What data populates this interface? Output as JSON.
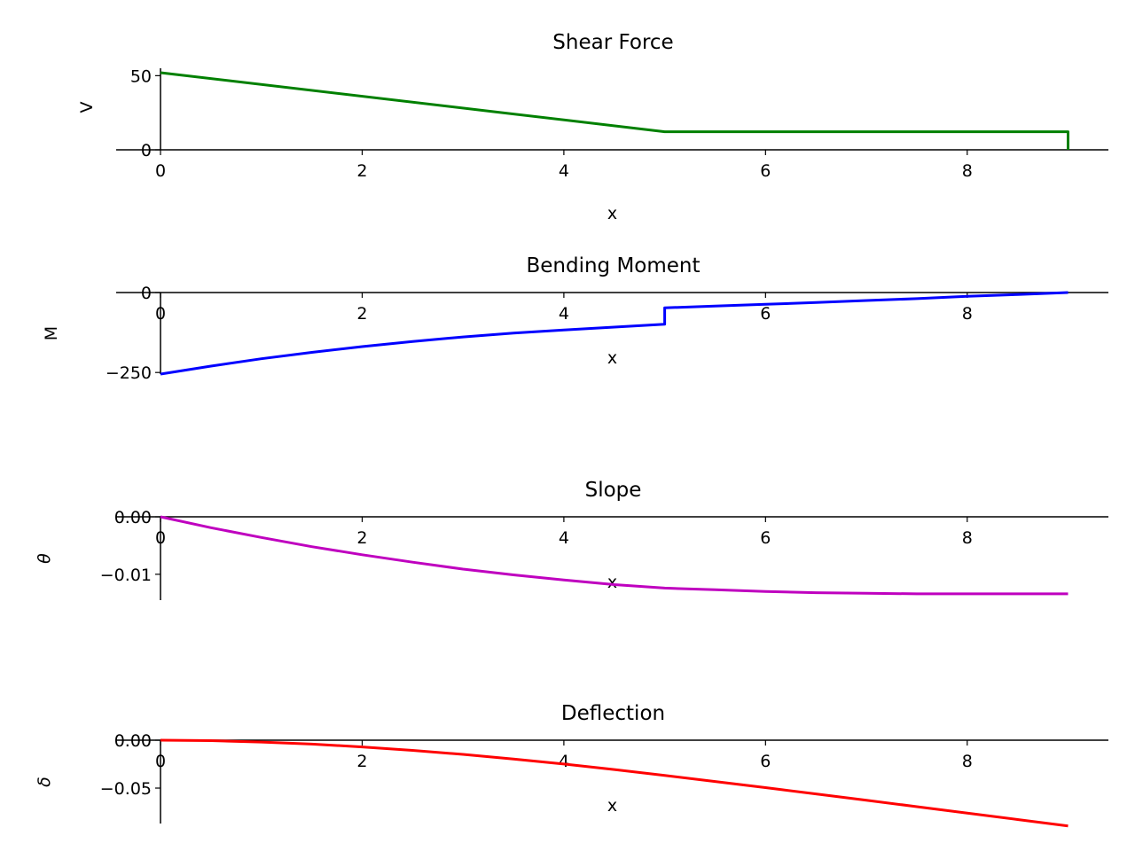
{
  "figure": {
    "background": "#ffffff"
  },
  "chart_data": [
    {
      "type": "line",
      "title": "Shear Force",
      "xlabel": "x",
      "ylabel": "V",
      "color": "#008000",
      "xlim": [
        0,
        9.4
      ],
      "ylim": [
        0,
        55
      ],
      "xticks": [
        0,
        2,
        4,
        6,
        8
      ],
      "yticks": [
        0,
        50
      ],
      "ytick_labels": [
        "0",
        "50"
      ],
      "x": [
        0,
        5,
        5,
        9,
        9
      ],
      "y": [
        52,
        12.2,
        12.2,
        12.2,
        0
      ]
    },
    {
      "type": "line",
      "title": "Bending Moment",
      "xlabel": "x",
      "ylabel": "M",
      "color": "#0000ff",
      "xlim": [
        0,
        9.4
      ],
      "ylim": [
        -255,
        0
      ],
      "xticks": [
        0,
        2,
        4,
        6,
        8
      ],
      "yticks": [
        0,
        -250
      ],
      "ytick_labels": [
        "0",
        "−250"
      ],
      "x": [
        0,
        0.5,
        1,
        1.5,
        2,
        2.5,
        3,
        3.5,
        4,
        4.5,
        5,
        5,
        5.5,
        6,
        6.5,
        7,
        7.5,
        8,
        8.5,
        9
      ],
      "y": [
        -255,
        -230,
        -207,
        -187,
        -169,
        -153,
        -139,
        -127,
        -117,
        -108,
        -99,
        -48,
        -42,
        -37,
        -31,
        -25,
        -19,
        -12,
        -6,
        0
      ]
    },
    {
      "type": "line",
      "title": "Slope",
      "xlabel": "x",
      "ylabel": "θ",
      "color": "#bf00bf",
      "xlim": [
        0,
        9.4
      ],
      "ylim": [
        -0.0145,
        0
      ],
      "xticks": [
        0,
        2,
        4,
        6,
        8
      ],
      "yticks": [
        0,
        -0.01
      ],
      "ytick_labels": [
        "0.00",
        "−0.01"
      ],
      "x": [
        0,
        0.5,
        1,
        1.5,
        2,
        2.5,
        3,
        3.5,
        4,
        4.5,
        5,
        5.5,
        6,
        6.5,
        7,
        7.5,
        8,
        8.5,
        9
      ],
      "y": [
        0,
        -0.0019,
        -0.0036,
        -0.0052,
        -0.0066,
        -0.0079,
        -0.0091,
        -0.0101,
        -0.011,
        -0.0118,
        -0.0124,
        -0.0127,
        -0.013,
        -0.0132,
        -0.0133,
        -0.0134,
        -0.0134,
        -0.0134,
        -0.0134
      ]
    },
    {
      "type": "line",
      "title": "Deflection",
      "xlabel": "x",
      "ylabel": "δ",
      "color": "#ff0000",
      "xlim": [
        0,
        9.4
      ],
      "ylim": [
        -0.087,
        0
      ],
      "xticks": [
        0,
        2,
        4,
        6,
        8
      ],
      "yticks": [
        0,
        -0.05
      ],
      "ytick_labels": [
        "0.00",
        "−0.05"
      ],
      "x": [
        0,
        0.5,
        1,
        1.5,
        2,
        2.5,
        3,
        3.5,
        4,
        4.5,
        5,
        5.5,
        6,
        6.5,
        7,
        7.5,
        8,
        8.5,
        9
      ],
      "y": [
        0,
        -0.0005,
        -0.0019,
        -0.0041,
        -0.007,
        -0.0106,
        -0.0148,
        -0.0196,
        -0.0249,
        -0.0306,
        -0.0367,
        -0.0431,
        -0.0495,
        -0.0561,
        -0.0627,
        -0.0694,
        -0.0761,
        -0.0828,
        -0.0895
      ]
    }
  ]
}
